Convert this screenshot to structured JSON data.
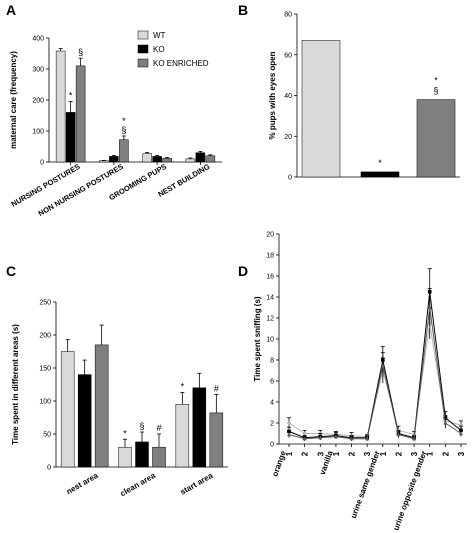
{
  "colors": {
    "wt": "#d9d9d9",
    "ko": "#000000",
    "ko_enriched": "#7f7f7f"
  },
  "chart_data": [
    {
      "panel": "A",
      "type": "bar",
      "ylabel": "maternal care (frequency)",
      "ylim": [
        0,
        400
      ],
      "yticks": [
        0,
        100,
        200,
        300,
        400
      ],
      "categories": [
        "NURSING POSTURES",
        "NON NURSING POSTURES",
        "GROOMING PUPS",
        "NEST BUILDING"
      ],
      "legend": {
        "placement": "top-right",
        "entries": [
          "WT",
          "KO",
          "KO ENRICHED"
        ]
      },
      "series": [
        {
          "name": "WT",
          "values": [
            358,
            4,
            27,
            10
          ],
          "errors": [
            8,
            1,
            4,
            3
          ]
        },
        {
          "name": "KO",
          "values": [
            160,
            18,
            18,
            30
          ],
          "errors": [
            35,
            3,
            3,
            4
          ]
        },
        {
          "name": "KO ENRICHED",
          "values": [
            310,
            72,
            12,
            20
          ],
          "errors": [
            25,
            12,
            3,
            3
          ]
        }
      ],
      "annotations": [
        {
          "category": 0,
          "series": 1,
          "text": "*"
        },
        {
          "category": 0,
          "series": 2,
          "text": "§"
        },
        {
          "category": 1,
          "series": 2,
          "text": "§"
        },
        {
          "category": 1,
          "series": 2,
          "text": "*"
        }
      ]
    },
    {
      "panel": "B",
      "type": "bar",
      "ylabel": "% pups with eyes open",
      "ylim": [
        0,
        80
      ],
      "yticks": [
        0,
        20,
        40,
        60,
        80
      ],
      "series": [
        {
          "name": "WT",
          "values": [
            67
          ]
        },
        {
          "name": "KO",
          "values": [
            2.5
          ]
        },
        {
          "name": "KO ENRICHED",
          "values": [
            38
          ]
        }
      ],
      "annotations": [
        {
          "series": 1,
          "text": "*"
        },
        {
          "series": 2,
          "text": "§"
        },
        {
          "series": 2,
          "text": "*"
        }
      ]
    },
    {
      "panel": "C",
      "type": "bar",
      "ylabel": "Time spent in different areas (s)",
      "ylim": [
        0,
        250
      ],
      "yticks": [
        0,
        50,
        100,
        150,
        200,
        250
      ],
      "categories": [
        "nest area",
        "clean area",
        "start area"
      ],
      "series": [
        {
          "name": "WT",
          "values": [
            175,
            30,
            95
          ],
          "errors": [
            18,
            12,
            18
          ]
        },
        {
          "name": "KO",
          "values": [
            140,
            38,
            120
          ],
          "errors": [
            22,
            15,
            22
          ]
        },
        {
          "name": "KO ENRICHED",
          "values": [
            185,
            30,
            82
          ],
          "errors": [
            30,
            20,
            28
          ]
        }
      ],
      "annotations": [
        {
          "category": 1,
          "series": 0,
          "text": "*"
        },
        {
          "category": 1,
          "series": 1,
          "text": "§"
        },
        {
          "category": 1,
          "series": 2,
          "text": "#"
        },
        {
          "category": 2,
          "series": 0,
          "text": "*"
        },
        {
          "category": 2,
          "series": 2,
          "text": "#"
        }
      ]
    },
    {
      "panel": "D",
      "type": "line",
      "ylabel": "Time spent sniffing (s)",
      "ylim": [
        0,
        20
      ],
      "yticks": [
        0,
        2,
        4,
        6,
        8,
        10,
        12,
        14,
        16,
        18,
        20
      ],
      "x": [
        "1",
        "2",
        "3",
        "1",
        "2",
        "3",
        "1",
        "2",
        "3",
        "1",
        "2",
        "3"
      ],
      "groups": [
        "orange",
        "vanilla",
        "urine same gender",
        "urine opposite gender"
      ],
      "series": [
        {
          "name": "WT",
          "values": [
            2.0,
            1.0,
            1.0,
            0.9,
            0.8,
            0.7,
            7.0,
            1.3,
            0.9,
            11.5,
            2.2,
            1.8
          ],
          "errors": [
            0.5,
            0.3,
            0.3,
            0.3,
            0.3,
            0.2,
            1.2,
            0.4,
            0.3,
            1.5,
            0.5,
            0.4
          ]
        },
        {
          "name": "KO",
          "values": [
            1.2,
            0.6,
            0.7,
            0.8,
            0.6,
            0.6,
            8.0,
            1.0,
            0.6,
            14.5,
            2.5,
            1.3
          ],
          "errors": [
            0.4,
            0.2,
            0.3,
            0.3,
            0.2,
            0.2,
            1.3,
            0.3,
            0.2,
            2.2,
            0.6,
            0.4
          ]
        },
        {
          "name": "KO ENRICHED",
          "values": [
            0.9,
            0.5,
            0.6,
            0.7,
            0.5,
            0.5,
            7.5,
            0.9,
            0.5,
            13.0,
            2.0,
            1.0
          ],
          "errors": [
            0.3,
            0.2,
            0.2,
            0.2,
            0.2,
            0.2,
            1.2,
            0.3,
            0.2,
            1.8,
            0.5,
            0.3
          ]
        }
      ]
    }
  ],
  "panels": {
    "a": {
      "label": "A"
    },
    "b": {
      "label": "B"
    },
    "c": {
      "label": "C"
    },
    "d": {
      "label": "D"
    }
  }
}
